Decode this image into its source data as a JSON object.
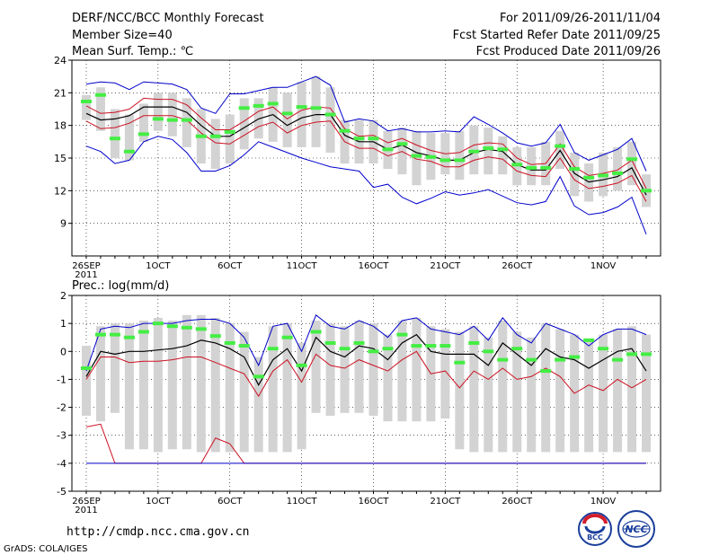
{
  "header": {
    "title": "DERF/NCC/BCC Monthly Forecast",
    "member_size": "Member Size=40",
    "variable": "Mean Surf. Temp.: ℃",
    "period": "For 2011/09/26-2011/11/04",
    "refer_date": "Fcst Started Refer Date 2011/09/25",
    "produced_date": "Fcst Produced Date 2011/09/26"
  },
  "footer": {
    "url": "http://cmdp.ncc.cma.gov.cn",
    "grads": "GrADS: COLA/IGES",
    "logo_bcc": "BCC",
    "logo_ncc": "NCC"
  },
  "colors": {
    "background": "#ffffff",
    "box": "#d3d3d3",
    "mean": "#000000",
    "inner_band": "#cc1122",
    "outer_band": "#0000cc",
    "median_marker": "#44ee44",
    "grid": "#000000"
  },
  "chart_data": [
    {
      "type": "box-plume",
      "title": "Mean Surf. Temp.: ℃",
      "xlabel": "",
      "ylabel": "",
      "ylim": [
        6,
        24
      ],
      "yticks": [
        9,
        12,
        15,
        18,
        21,
        24
      ],
      "xlim": [
        -1,
        40
      ],
      "xtick_days": [
        0,
        5,
        10,
        15,
        20,
        25,
        30,
        36
      ],
      "xtick_labels": [
        "26SEP",
        "1OCT",
        "6OCT",
        "11OCT",
        "16OCT",
        "21OCT",
        "26OCT",
        "1NOV"
      ],
      "year_label": "2011",
      "days": [
        0,
        1,
        2,
        3,
        4,
        5,
        6,
        7,
        8,
        9,
        10,
        11,
        12,
        13,
        14,
        15,
        16,
        17,
        18,
        19,
        20,
        21,
        22,
        23,
        24,
        25,
        26,
        27,
        28,
        29,
        30,
        31,
        32,
        33,
        34,
        35,
        36,
        37,
        38,
        39
      ],
      "mean": [
        19.1,
        18.5,
        18.6,
        18.9,
        19.7,
        19.7,
        19.7,
        19.2,
        18.0,
        17.0,
        17.0,
        17.8,
        18.6,
        19.0,
        18.0,
        18.7,
        19.0,
        19.0,
        17.1,
        16.5,
        16.5,
        15.8,
        16.2,
        15.5,
        15.2,
        14.8,
        14.8,
        15.5,
        15.8,
        15.6,
        14.4,
        13.9,
        13.9,
        15.7,
        13.6,
        12.8,
        13.0,
        13.3,
        14.1,
        11.6
      ],
      "upper1": [
        19.8,
        19.1,
        19.2,
        19.5,
        20.5,
        20.4,
        20.4,
        19.9,
        18.7,
        17.6,
        17.6,
        18.4,
        19.3,
        19.7,
        18.6,
        19.4,
        19.7,
        19.6,
        17.7,
        17.0,
        17.1,
        16.4,
        16.8,
        16.2,
        15.7,
        15.4,
        15.5,
        16.2,
        16.4,
        16.3,
        15.0,
        14.4,
        14.5,
        16.3,
        14.2,
        13.4,
        13.6,
        13.9,
        14.8,
        12.2
      ],
      "lower1": [
        18.4,
        17.7,
        17.8,
        18.2,
        18.9,
        18.9,
        18.9,
        18.5,
        17.3,
        16.4,
        16.3,
        17.1,
        17.9,
        18.3,
        17.3,
        18.0,
        18.3,
        18.4,
        16.5,
        15.9,
        15.9,
        15.2,
        15.6,
        14.9,
        14.7,
        14.2,
        14.2,
        14.8,
        15.1,
        14.9,
        13.8,
        13.4,
        13.3,
        15.0,
        13.0,
        12.2,
        12.4,
        12.7,
        13.4,
        11.0
      ],
      "upper2": [
        21.8,
        22.0,
        21.9,
        21.3,
        22.0,
        21.9,
        21.8,
        21.3,
        19.6,
        19.1,
        20.9,
        20.9,
        21.2,
        21.5,
        21.5,
        22.0,
        22.5,
        21.7,
        18.3,
        18.6,
        18.4,
        17.5,
        17.7,
        17.4,
        17.4,
        17.5,
        17.4,
        18.8,
        18.1,
        17.3,
        16.4,
        16.1,
        16.4,
        18.1,
        15.5,
        14.8,
        15.3,
        15.8,
        16.8,
        13.8
      ],
      "lower2": [
        16.1,
        15.6,
        14.5,
        14.8,
        16.5,
        17.0,
        16.7,
        15.5,
        13.8,
        13.8,
        14.3,
        15.3,
        16.5,
        16.0,
        15.5,
        15.0,
        14.6,
        14.2,
        14.0,
        13.8,
        12.3,
        12.6,
        11.4,
        10.8,
        11.3,
        11.9,
        11.6,
        11.8,
        12.1,
        11.5,
        10.9,
        10.7,
        11.0,
        13.3,
        10.6,
        9.8,
        10.0,
        10.5,
        11.4,
        8.0
      ],
      "box_top": [
        20.8,
        21.5,
        19.5,
        19.0,
        20.0,
        21.0,
        21.0,
        20.5,
        19.5,
        18.6,
        19.0,
        20.5,
        20.5,
        21.5,
        21.0,
        22.0,
        22.5,
        21.5,
        18.5,
        18.5,
        18.5,
        17.5,
        17.8,
        17.5,
        17.3,
        17.3,
        17.5,
        18.0,
        17.8,
        17.0,
        16.0,
        16.0,
        16.5,
        17.5,
        15.5,
        14.5,
        15.5,
        16.0,
        16.5,
        13.5
      ],
      "box_bot": [
        18.5,
        17.5,
        15.0,
        14.8,
        16.5,
        17.5,
        17.0,
        16.0,
        14.5,
        14.0,
        14.5,
        15.8,
        16.8,
        16.5,
        16.0,
        16.0,
        16.0,
        15.5,
        14.5,
        14.5,
        14.5,
        14.0,
        13.5,
        12.5,
        13.0,
        13.5,
        13.0,
        13.5,
        13.5,
        13.5,
        12.5,
        12.5,
        12.5,
        14.0,
        11.5,
        11.0,
        11.5,
        12.0,
        12.5,
        10.5
      ],
      "median": [
        20.2,
        20.8,
        16.8,
        15.6,
        17.2,
        18.6,
        18.5,
        18.5,
        17.0,
        17.0,
        17.4,
        19.6,
        19.8,
        20.0,
        19.1,
        19.7,
        19.6,
        19.0,
        17.5,
        16.8,
        16.8,
        15.8,
        16.3,
        15.2,
        15.1,
        14.8,
        14.8,
        15.6,
        15.9,
        15.8,
        14.4,
        14.1,
        14.1,
        16.1,
        14.0,
        13.2,
        13.4,
        13.6,
        14.9,
        12.0
      ]
    },
    {
      "type": "box-plume",
      "title": "Prec.: log(mm/d)",
      "xlabel": "",
      "ylabel": "",
      "ylim": [
        -5,
        2
      ],
      "yticks": [
        -5,
        -4,
        -3,
        -2,
        -1,
        0,
        1,
        2
      ],
      "xlim": [
        -1,
        40
      ],
      "xtick_days": [
        0,
        5,
        10,
        15,
        20,
        25,
        30,
        36
      ],
      "xtick_labels": [
        "26SEP",
        "1OCT",
        "6OCT",
        "11OCT",
        "16OCT",
        "21OCT",
        "26OCT",
        "1NOV"
      ],
      "year_label": "2011",
      "days": [
        0,
        1,
        2,
        3,
        4,
        5,
        6,
        7,
        8,
        9,
        10,
        11,
        12,
        13,
        14,
        15,
        16,
        17,
        18,
        19,
        20,
        21,
        22,
        23,
        24,
        25,
        26,
        27,
        28,
        29,
        30,
        31,
        32,
        33,
        34,
        35,
        36,
        37,
        38,
        39
      ],
      "mean": [
        -0.9,
        0.0,
        -0.1,
        0.0,
        0.0,
        0.05,
        0.1,
        0.2,
        0.4,
        0.3,
        0.1,
        -0.2,
        -1.2,
        -0.3,
        0.1,
        -0.7,
        0.5,
        0.0,
        -0.2,
        0.2,
        0.1,
        -0.3,
        0.3,
        0.6,
        0.0,
        -0.1,
        -0.1,
        -0.1,
        -0.5,
        0.3,
        -0.1,
        -0.5,
        0.1,
        -0.2,
        -0.3,
        -0.6,
        -0.3,
        0.0,
        0.1,
        -0.7
      ],
      "upper1": [
        -0.7,
        0.8,
        0.9,
        0.85,
        1.0,
        1.0,
        1.0,
        1.1,
        1.15,
        1.15,
        1.0,
        0.5,
        -0.5,
        0.9,
        1.0,
        0.0,
        1.3,
        0.9,
        0.8,
        1.1,
        0.9,
        0.5,
        1.1,
        1.2,
        0.8,
        0.7,
        0.6,
        0.9,
        0.4,
        1.2,
        0.6,
        0.3,
        1.0,
        0.8,
        0.6,
        0.2,
        0.6,
        0.8,
        0.8,
        0.6
      ],
      "lower1": [
        -1.0,
        -0.2,
        -0.2,
        -0.4,
        -0.35,
        -0.35,
        -0.3,
        -0.2,
        -0.2,
        -0.4,
        -0.6,
        -0.8,
        -1.6,
        -0.7,
        -0.3,
        -1.1,
        -0.1,
        -0.5,
        -0.6,
        -0.3,
        -0.5,
        -0.7,
        -0.3,
        0.0,
        -0.8,
        -0.7,
        -1.3,
        -0.7,
        -1.0,
        -0.6,
        -1.0,
        -0.9,
        -0.6,
        -0.9,
        -1.5,
        -1.2,
        -1.4,
        -1.0,
        -1.3,
        -1.0
      ],
      "lower2": [
        -2.7,
        -2.6,
        -4.0,
        -4.0,
        -4.0,
        -4.0,
        -4.0,
        -4.0,
        -4.0,
        -3.1,
        -3.3,
        -4.0,
        -4.0,
        -4.0,
        -4.0,
        -4.0,
        -4.0,
        -4.0,
        -4.0,
        -4.0,
        -4.0,
        -4.0,
        -4.0,
        -4.0,
        -4.0,
        -4.0,
        -4.0,
        -4.0,
        -4.0,
        -4.0,
        -4.0,
        -4.0,
        -4.0,
        -4.0,
        -4.0,
        -4.0,
        -4.0,
        -4.0,
        -4.0,
        -4.0
      ],
      "floor": [
        -4.0,
        -4.0,
        -4.0,
        -4.0,
        -4.0,
        -4.0,
        -4.0,
        -4.0,
        -4.0,
        -4.0,
        -4.0,
        -4.0,
        -4.0,
        -4.0,
        -4.0,
        -4.0,
        -4.0,
        -4.0,
        -4.0,
        -4.0,
        -4.0,
        -4.0,
        -4.0,
        -4.0,
        -4.0,
        -4.0,
        -4.0,
        -4.0,
        -4.0,
        -4.0,
        -4.0,
        -4.0,
        -4.0,
        -4.0,
        -4.0,
        -4.0,
        -4.0,
        -4.0,
        -4.0,
        -4.0
      ],
      "box_top": [
        0.2,
        0.9,
        1.0,
        1.0,
        1.1,
        1.2,
        1.1,
        1.3,
        1.3,
        1.2,
        1.0,
        0.7,
        -0.2,
        0.9,
        1.0,
        0.3,
        1.1,
        1.0,
        0.9,
        1.1,
        1.0,
        0.6,
        1.1,
        1.2,
        0.9,
        0.8,
        0.7,
        0.9,
        0.5,
        1.1,
        0.7,
        0.5,
        1.0,
        0.8,
        0.6,
        0.4,
        0.6,
        0.8,
        0.9,
        0.6
      ],
      "box_bot": [
        -2.3,
        -2.5,
        -2.2,
        -3.5,
        -3.5,
        -3.6,
        -3.5,
        -3.5,
        -3.6,
        -3.6,
        -3.6,
        -3.6,
        -3.6,
        -3.6,
        -3.6,
        -3.5,
        -2.2,
        -2.3,
        -2.2,
        -2.2,
        -2.3,
        -2.5,
        -2.5,
        -2.5,
        -2.5,
        -2.4,
        -3.5,
        -3.6,
        -3.6,
        -3.6,
        -3.6,
        -3.6,
        -3.6,
        -3.6,
        -3.6,
        -3.6,
        -3.6,
        -3.6,
        -3.6,
        -3.6
      ],
      "median": [
        -0.6,
        0.6,
        0.6,
        0.5,
        0.7,
        1.0,
        0.9,
        0.85,
        0.8,
        0.55,
        0.3,
        0.2,
        -0.9,
        0.1,
        0.5,
        -0.5,
        0.7,
        0.3,
        0.1,
        0.3,
        0.0,
        0.1,
        0.6,
        0.2,
        0.2,
        0.2,
        -0.4,
        0.3,
        0.0,
        -0.3,
        0.1,
        -0.3,
        -0.7,
        -0.3,
        -0.2,
        0.4,
        0.1,
        -0.3,
        -0.1,
        -0.1
      ]
    }
  ]
}
